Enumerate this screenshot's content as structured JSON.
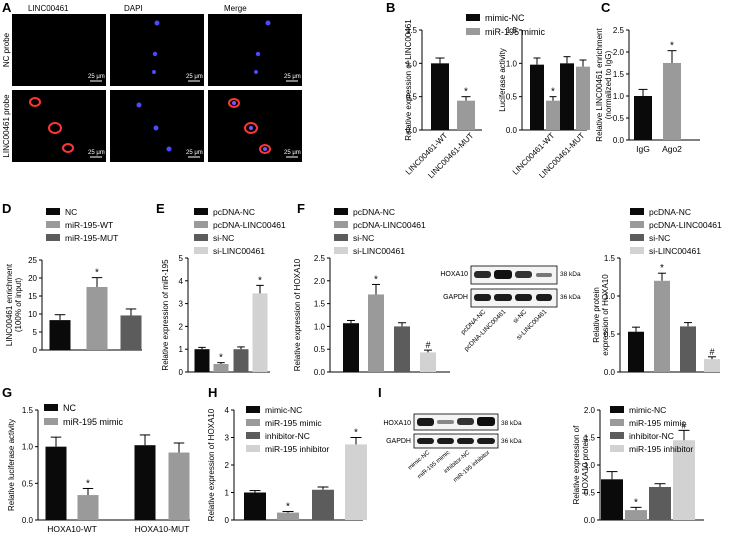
{
  "colors": {
    "black": "#0a0a0a",
    "dark_gray": "#5c5c5c",
    "mid_gray": "#9a9a9a",
    "light_gray": "#d2d2d2",
    "axis": "#000000",
    "red_signal": "#ff3030",
    "blue_signal": "#3a3aff"
  },
  "panel_letters": [
    "A",
    "B",
    "C",
    "D",
    "E",
    "F",
    "G",
    "H",
    "I"
  ],
  "panelA": {
    "col_labels": [
      "LINC00461",
      "DAPI",
      "Merge"
    ],
    "row_labels": [
      "NC probe",
      "LINC00461 probe"
    ],
    "scale_bar": "25 μm"
  },
  "panelF_blot": {
    "bands": [
      "HOXA10",
      "GAPDH"
    ],
    "kda": [
      "38 kDa",
      "36 kDa"
    ],
    "lanes": [
      "pcDNA-NC",
      "pcDNA-LINC00461",
      "si-NC",
      "si-LINC00461"
    ]
  },
  "panelI_blot": {
    "bands": [
      "HOXA10",
      "GAPDH"
    ],
    "kda": [
      "38 kDa",
      "36 kDa"
    ],
    "lanes": [
      "mimic-NC",
      "miR-195 mimic",
      "inhibitor-NC",
      "miR-195 inhibitor"
    ]
  },
  "chart_data": [
    {
      "id": "B1",
      "type": "bar",
      "ylabel": "Relative expression of LINC00461",
      "ylim": [
        0,
        1.5
      ],
      "ticks": [
        0,
        0.5,
        1.0,
        1.5
      ],
      "categories": [
        "LINC00461-WT",
        "LINC00461-MUT"
      ],
      "series": [
        {
          "values": [
            1.0,
            0.44
          ],
          "errors": [
            0.08,
            0.06
          ],
          "colors": [
            "black",
            "mid_gray"
          ]
        }
      ],
      "annotations": [
        "",
        "*"
      ]
    },
    {
      "id": "B2",
      "type": "bar",
      "ylabel": "Luciferase activity",
      "ylim": [
        0,
        1.5
      ],
      "ticks": [
        0,
        0.5,
        1.0,
        1.5
      ],
      "categories": [
        "LINC00461-WT",
        "LINC00461-MUT"
      ],
      "legend": [
        "mimic-NC",
        "miR-195 mimic"
      ],
      "series": [
        {
          "name": "mimic-NC",
          "values": [
            0.98,
            1.0
          ],
          "errors": [
            0.1,
            0.1
          ],
          "color": "black"
        },
        {
          "name": "miR-195 mimic",
          "values": [
            0.44,
            0.95
          ],
          "errors": [
            0.06,
            0.1
          ],
          "color": "mid_gray"
        }
      ],
      "annotations": [
        [
          "",
          ""
        ],
        [
          "*",
          ""
        ]
      ]
    },
    {
      "id": "C",
      "type": "bar",
      "ylabel": "Relative LINC00461 enrichment (normalized to IgG)",
      "ylim": [
        0,
        2.5
      ],
      "ticks": [
        0,
        0.5,
        1.0,
        1.5,
        2.0,
        2.5
      ],
      "categories": [
        "IgG",
        "Ago2"
      ],
      "series": [
        {
          "values": [
            1.0,
            1.75
          ],
          "errors": [
            0.15,
            0.28
          ],
          "colors": [
            "black",
            "mid_gray"
          ]
        }
      ],
      "annotations": [
        "",
        "*"
      ]
    },
    {
      "id": "D",
      "type": "bar",
      "ylabel": "LINC00461 enrichment (100% of input)",
      "ylim": [
        0,
        25
      ],
      "ticks": [
        0,
        5,
        10,
        15,
        20,
        25
      ],
      "legend": [
        "NC",
        "miR-195-WT",
        "miR-195-MUT"
      ],
      "series": [
        {
          "values": [
            8.3,
            17.5,
            9.6
          ],
          "errors": [
            1.5,
            2.6,
            1.8
          ],
          "colors": [
            "black",
            "mid_gray",
            "dark_gray"
          ]
        }
      ],
      "annotations": [
        "",
        "*",
        ""
      ]
    },
    {
      "id": "E",
      "type": "bar",
      "ylabel": "Relative expression of miR-195",
      "ylim": [
        0,
        5
      ],
      "ticks": [
        0,
        1,
        2,
        3,
        4,
        5
      ],
      "legend": [
        "pcDNA-NC",
        "pcDNA-LINC00461",
        "si-NC",
        "si-LINC00461"
      ],
      "series": [
        {
          "values": [
            1.0,
            0.35,
            1.0,
            3.45
          ],
          "errors": [
            0.08,
            0.06,
            0.1,
            0.35
          ],
          "colors": [
            "black",
            "mid_gray",
            "dark_gray",
            "light_gray"
          ]
        }
      ],
      "annotations": [
        "",
        "*",
        "",
        "*"
      ]
    },
    {
      "id": "F1",
      "type": "bar",
      "ylabel": "Relative expression of HOXA10",
      "ylim": [
        0,
        2.5
      ],
      "ticks": [
        0,
        0.5,
        1.0,
        1.5,
        2.0,
        2.5
      ],
      "legend": [
        "pcDNA-NC",
        "pcDNA-LINC00461",
        "si-NC",
        "si-LINC00461"
      ],
      "series": [
        {
          "values": [
            1.07,
            1.7,
            1.0,
            0.43
          ],
          "errors": [
            0.06,
            0.22,
            0.08,
            0.05
          ],
          "colors": [
            "black",
            "mid_gray",
            "dark_gray",
            "light_gray"
          ]
        }
      ],
      "annotations": [
        "",
        "*",
        "",
        "#"
      ]
    },
    {
      "id": "F2",
      "type": "bar",
      "ylabel": "Relative protein expression of HOXA10",
      "ylim": [
        0,
        1.5
      ],
      "ticks": [
        0,
        0.5,
        1.0,
        1.5
      ],
      "legend": [
        "pcDNA-NC",
        "pcDNA-LINC00461",
        "si-NC",
        "si-LINC00461"
      ],
      "series": [
        {
          "values": [
            0.53,
            1.2,
            0.6,
            0.17
          ],
          "errors": [
            0.06,
            0.1,
            0.05,
            0.03
          ],
          "colors": [
            "black",
            "mid_gray",
            "dark_gray",
            "light_gray"
          ]
        }
      ],
      "annotations": [
        "",
        "*",
        "",
        "#"
      ]
    },
    {
      "id": "G",
      "type": "bar",
      "ylabel": "Relative luciferase activity",
      "ylim": [
        0,
        1.5
      ],
      "ticks": [
        0,
        0.5,
        1.0,
        1.5
      ],
      "categories": [
        "HOXA10-WT",
        "HOXA10-MUT"
      ],
      "legend": [
        "NC",
        "miR-195 mimic"
      ],
      "series": [
        {
          "name": "NC",
          "values": [
            1.0,
            1.02
          ],
          "errors": [
            0.13,
            0.14
          ],
          "color": "black"
        },
        {
          "name": "miR-195 mimic",
          "values": [
            0.34,
            0.92
          ],
          "errors": [
            0.09,
            0.13
          ],
          "color": "mid_gray"
        }
      ],
      "annotations": [
        [
          "",
          ""
        ],
        [
          "*",
          ""
        ]
      ]
    },
    {
      "id": "H",
      "type": "bar",
      "ylabel": "Relative expression of HOXA10",
      "ylim": [
        0,
        4
      ],
      "ticks": [
        0,
        1,
        2,
        3,
        4
      ],
      "legend": [
        "mimic-NC",
        "miR-195 mimic",
        "inhibitor-NC",
        "miR-195 inhibitor"
      ],
      "series": [
        {
          "values": [
            1.0,
            0.27,
            1.1,
            2.75
          ],
          "errors": [
            0.07,
            0.04,
            0.1,
            0.25
          ],
          "colors": [
            "black",
            "mid_gray",
            "dark_gray",
            "light_gray"
          ]
        }
      ],
      "annotations": [
        "",
        "*",
        "",
        "*"
      ]
    },
    {
      "id": "I",
      "type": "bar",
      "ylabel": "Relative expression of HOXA10 protein",
      "ylim": [
        0,
        2.0
      ],
      "ticks": [
        0,
        0.5,
        1.0,
        1.5,
        2.0
      ],
      "legend": [
        "mimic-NC",
        "miR-195 mimic",
        "inhibitor-NC",
        "miR-195 inhibitor"
      ],
      "series": [
        {
          "values": [
            0.74,
            0.18,
            0.6,
            1.45
          ],
          "errors": [
            0.14,
            0.05,
            0.06,
            0.18
          ],
          "colors": [
            "black",
            "mid_gray",
            "dark_gray",
            "light_gray"
          ]
        }
      ],
      "annotations": [
        "",
        "*",
        "",
        "#"
      ]
    }
  ]
}
